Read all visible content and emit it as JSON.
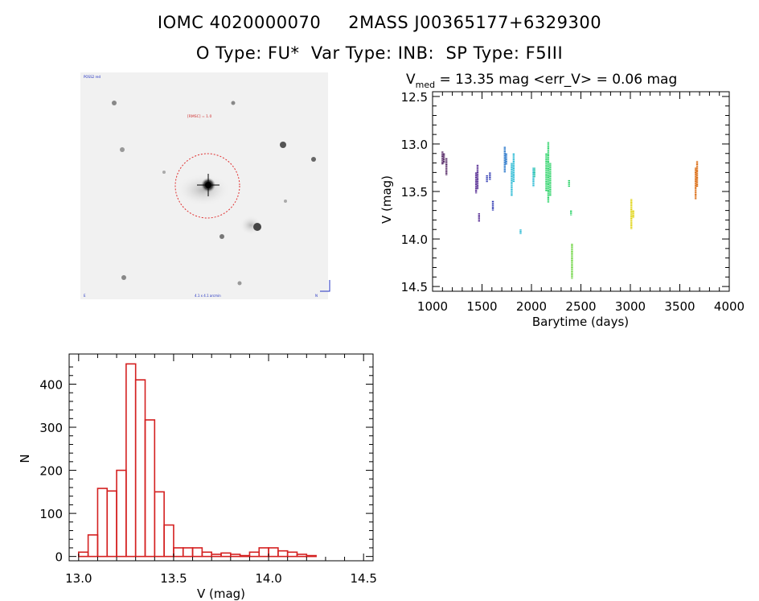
{
  "header": {
    "iomc_id": "IOMC 4020000070",
    "mass_id": "2MASS J00365177+6329300",
    "types": "O Type: FU*  Var Type: INB:  SP Type: F5III"
  },
  "image_panel": {
    "labels": {
      "top_left": "POSS2 red",
      "center": "[RMSC] = 1.0",
      "bottom_left": "E",
      "bottom_center": "4.1 x 4.1 arcmin",
      "bottom_right": "N"
    }
  },
  "colors": {
    "histogram": "#d42020",
    "circle": "#e03030",
    "series": [
      "#4a1a5c",
      "#4b1f8c",
      "#2a34b0",
      "#1e70c8",
      "#18b4d0",
      "#18c0a0",
      "#20d060",
      "#60d030",
      "#ddd000",
      "#d86000"
    ]
  },
  "chart_data": [
    {
      "type": "scatter",
      "title_prefix": "V",
      "title_subscript": "med",
      "title_rest": " = 13.35 mag <err_V> = 0.06 mag",
      "xlabel": "Barytime (days)",
      "ylabel": "V (mag)",
      "xlim": [
        1000,
        4000
      ],
      "ylim": [
        14.55,
        12.45
      ],
      "y_inverted": true,
      "x_ticks": [
        1000,
        1500,
        2000,
        2500,
        3000,
        3500,
        4000
      ],
      "x_tick_labels": [
        "1000",
        "1500",
        "2000",
        "2500",
        "3000",
        "3500",
        "4000"
      ],
      "y_ticks": [
        12.5,
        13.0,
        13.5,
        14.0,
        14.5
      ],
      "y_tick_labels": [
        "12.5",
        "13.0",
        "13.5",
        "14.0",
        "14.5"
      ],
      "series": [
        {
          "color_index": 0,
          "segments": [
            {
              "x": 1100,
              "y_min": 13.08,
              "y_max": 13.22
            },
            {
              "x": 1115,
              "y_min": 13.1,
              "y_max": 13.2
            },
            {
              "x": 1140,
              "y_min": 13.15,
              "y_max": 13.33
            }
          ]
        },
        {
          "color_index": 1,
          "segments": [
            {
              "x": 1440,
              "y_min": 13.3,
              "y_max": 13.52
            },
            {
              "x": 1455,
              "y_min": 13.22,
              "y_max": 13.48
            },
            {
              "x": 1470,
              "y_min": 13.73,
              "y_max": 13.82
            }
          ]
        },
        {
          "color_index": 2,
          "segments": [
            {
              "x": 1550,
              "y_min": 13.33,
              "y_max": 13.4
            },
            {
              "x": 1580,
              "y_min": 13.3,
              "y_max": 13.38
            },
            {
              "x": 1610,
              "y_min": 13.6,
              "y_max": 13.7
            }
          ]
        },
        {
          "color_index": 3,
          "segments": [
            {
              "x": 1730,
              "y_min": 13.03,
              "y_max": 13.3
            },
            {
              "x": 1745,
              "y_min": 13.1,
              "y_max": 13.22
            }
          ]
        },
        {
          "color_index": 4,
          "segments": [
            {
              "x": 1800,
              "y_min": 13.2,
              "y_max": 13.55
            },
            {
              "x": 1820,
              "y_min": 13.1,
              "y_max": 13.4
            },
            {
              "x": 1890,
              "y_min": 13.9,
              "y_max": 13.95
            },
            {
              "x": 2020,
              "y_min": 13.25,
              "y_max": 13.45
            }
          ]
        },
        {
          "color_index": 5,
          "segments": [
            {
              "x": 2030,
              "y_min": 13.25,
              "y_max": 13.35
            }
          ]
        },
        {
          "color_index": 6,
          "segments": [
            {
              "x": 2150,
              "y_min": 13.1,
              "y_max": 13.5
            },
            {
              "x": 2170,
              "y_min": 12.98,
              "y_max": 13.62
            },
            {
              "x": 2190,
              "y_min": 13.2,
              "y_max": 13.55
            },
            {
              "x": 2380,
              "y_min": 13.38,
              "y_max": 13.45
            },
            {
              "x": 2400,
              "y_min": 13.7,
              "y_max": 13.75
            }
          ]
        },
        {
          "color_index": 7,
          "segments": [
            {
              "x": 2410,
              "y_min": 14.05,
              "y_max": 14.42
            }
          ]
        },
        {
          "color_index": 8,
          "segments": [
            {
              "x": 3010,
              "y_min": 13.58,
              "y_max": 13.9
            },
            {
              "x": 3030,
              "y_min": 13.7,
              "y_max": 13.78
            }
          ]
        },
        {
          "color_index": 9,
          "segments": [
            {
              "x": 3660,
              "y_min": 13.25,
              "y_max": 13.58
            },
            {
              "x": 3675,
              "y_min": 13.18,
              "y_max": 13.45
            }
          ]
        }
      ]
    },
    {
      "type": "bar",
      "histogram": true,
      "xlabel": "V (mag)",
      "ylabel": "N",
      "xlim": [
        12.95,
        14.55
      ],
      "ylim": [
        -10,
        470
      ],
      "bin_width": 0.05,
      "bin_start": 13.0,
      "values": [
        10,
        50,
        158,
        152,
        200,
        447,
        410,
        317,
        150,
        73,
        20,
        20,
        20,
        10,
        5,
        8,
        5,
        2,
        10,
        20,
        20,
        13,
        10,
        5,
        2
      ],
      "x_ticks": [
        13.0,
        13.5,
        14.0,
        14.5
      ],
      "x_tick_labels": [
        "13.0",
        "13.5",
        "14.0",
        "14.5"
      ],
      "y_ticks": [
        0,
        100,
        200,
        300,
        400
      ],
      "y_tick_labels": [
        "0",
        "100",
        "200",
        "300",
        "400"
      ]
    }
  ]
}
